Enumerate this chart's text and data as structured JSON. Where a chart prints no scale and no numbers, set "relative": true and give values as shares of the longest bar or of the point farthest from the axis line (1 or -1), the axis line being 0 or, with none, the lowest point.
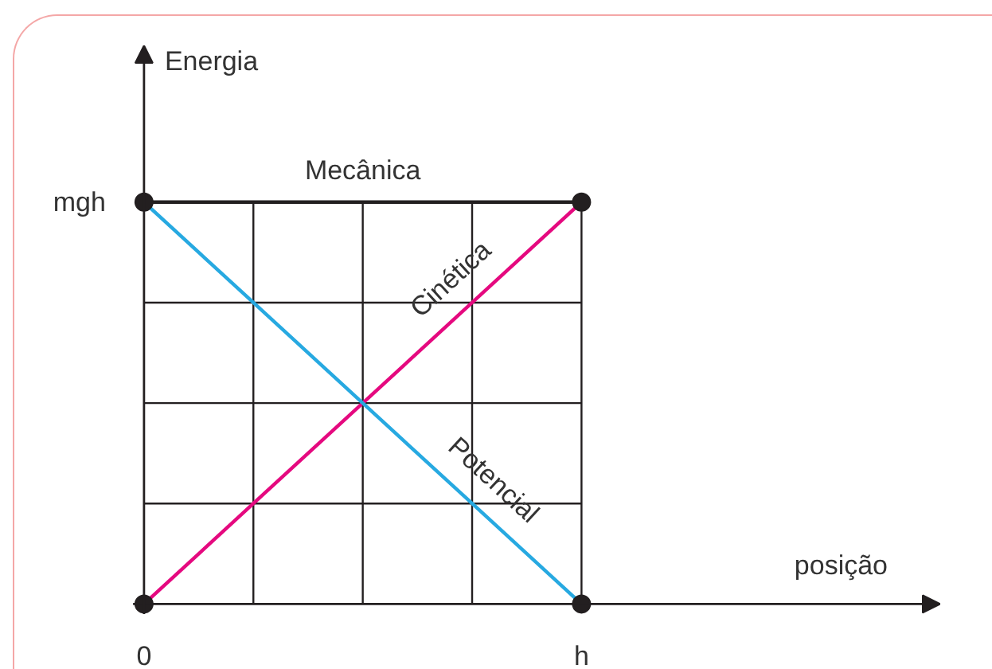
{
  "chart_data": {
    "type": "line",
    "relative": true,
    "ylabel": "Energia",
    "categories": [
      "0",
      null,
      null,
      null,
      "h"
    ],
    "series": [
      {
        "name": "Mecânica",
        "color": "#231f20",
        "values": [
          1,
          1,
          1,
          1,
          1
        ]
      },
      {
        "name": "Cinética",
        "color": "#e5097f",
        "values": [
          0,
          0.25,
          0.5,
          0.75,
          1
        ]
      },
      {
        "name": "Potencial",
        "color": "#27a9e1",
        "values": [
          1,
          0.75,
          0.5,
          0.25,
          0
        ]
      },
      {
        "type": "scatter",
        "marker": "circle",
        "color": "#231f20",
        "values": [
          1,
          null,
          null,
          null,
          1
        ]
      },
      {
        "type": "scatter",
        "marker": "circle",
        "color": "#231f20",
        "values": [
          0,
          null,
          null,
          null,
          0
        ]
      }
    ],
    "annotations": [
      "posição",
      "mgh"
    ],
    "grid": true,
    "line_style": "solid"
  }
}
